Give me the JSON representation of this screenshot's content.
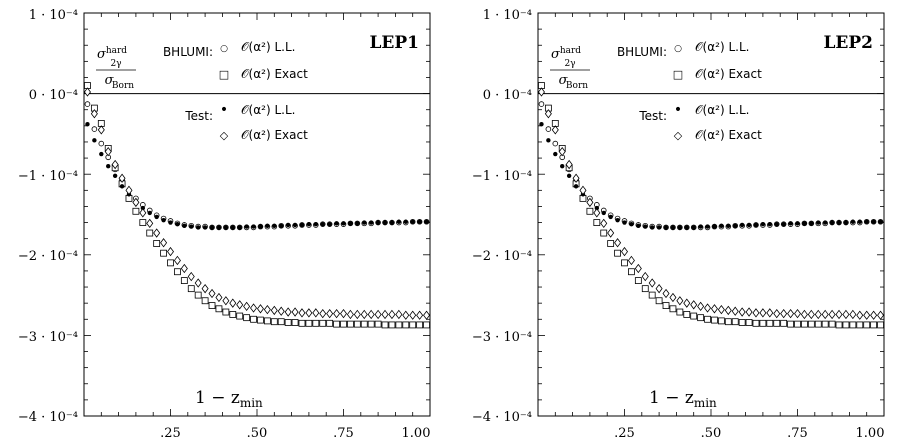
{
  "chart_data": [
    {
      "type": "scatter",
      "title": "LEP1",
      "ylabel_num": "σ",
      "ylabel_num_sup": "hard",
      "ylabel_num_sub": "2γ",
      "ylabel_den": "σ",
      "ylabel_den_sub": "Born",
      "xlabel_main": "1 − z",
      "xlabel_sub": "min",
      "xlim": [
        0,
        1.0
      ],
      "ylim": [
        -0.0004,
        0.0001
      ],
      "x_ticks": [
        0.25,
        0.5,
        0.75,
        1.0
      ],
      "x_tick_labels": [
        ".25",
        ".50",
        ".75",
        "1.00"
      ],
      "y_ticks": [
        0.0001,
        0,
        -0.0001,
        -0.0002,
        -0.0003,
        -0.0004
      ],
      "y_tick_labels": [
        "1 · 10⁻⁴",
        "0 · 10⁻⁴",
        "−1 · 10⁻⁴",
        "−2 · 10⁻⁴",
        "−3 · 10⁻⁴",
        "−4 · 10⁻⁴"
      ],
      "grid": false,
      "reference_line_y": 0,
      "legend": {
        "position": "top-right",
        "groups": [
          {
            "label": "BHLUMI:",
            "entries": [
              {
                "symbol": "○",
                "text": "𝒪(α²) L.L."
              },
              {
                "symbol": "□",
                "text": "𝒪(α²) Exact"
              }
            ]
          },
          {
            "label": "Test:",
            "entries": [
              {
                "symbol": "•",
                "text": "𝒪(α²) L.L."
              },
              {
                "symbol": "◇",
                "text": "𝒪(α²) Exact"
              }
            ]
          }
        ]
      },
      "x": [
        0.01,
        0.03,
        0.05,
        0.07,
        0.09,
        0.11,
        0.13,
        0.15,
        0.17,
        0.19,
        0.21,
        0.23,
        0.25,
        0.27,
        0.29,
        0.31,
        0.33,
        0.35,
        0.37,
        0.39,
        0.41,
        0.43,
        0.45,
        0.47,
        0.49,
        0.51,
        0.53,
        0.55,
        0.57,
        0.59,
        0.61,
        0.63,
        0.65,
        0.67,
        0.69,
        0.71,
        0.73,
        0.75,
        0.77,
        0.79,
        0.81,
        0.83,
        0.85,
        0.87,
        0.89,
        0.91,
        0.93,
        0.95,
        0.97,
        0.99
      ],
      "series": [
        {
          "name": "BHLUMI: 𝒪(α²) L.L.",
          "marker": "circle",
          "values": [
            -1.3e-05,
            -4.4e-05,
            -6.2e-05,
            -7.9e-05,
            -9.4e-05,
            -0.000107,
            -0.00012,
            -0.00013,
            -0.000138,
            -0.000145,
            -0.000151,
            -0.000155,
            -0.000158,
            -0.000161,
            -0.000163,
            -0.000164,
            -0.000165,
            -0.000165,
            -0.000166,
            -0.000166,
            -0.000166,
            -0.000166,
            -0.000166,
            -0.000166,
            -0.000166,
            -0.000165,
            -0.000165,
            -0.000165,
            -0.000164,
            -0.000164,
            -0.000164,
            -0.000163,
            -0.000163,
            -0.000163,
            -0.000162,
            -0.000162,
            -0.000162,
            -0.000162,
            -0.000161,
            -0.000161,
            -0.000161,
            -0.000161,
            -0.00016,
            -0.00016,
            -0.00016,
            -0.00016,
            -0.00016,
            -0.000159,
            -0.000159,
            -0.000159
          ]
        },
        {
          "name": "BHLUMI: 𝒪(α²) Exact",
          "marker": "square",
          "values": [
            1e-05,
            -1.8e-05,
            -3.7e-05,
            -6.8e-05,
            -9.2e-05,
            -0.000112,
            -0.00013,
            -0.000146,
            -0.00016,
            -0.000173,
            -0.000186,
            -0.000198,
            -0.00021,
            -0.000221,
            -0.000232,
            -0.000242,
            -0.00025,
            -0.000257,
            -0.000263,
            -0.000267,
            -0.000271,
            -0.000274,
            -0.000276,
            -0.000278,
            -0.00028,
            -0.000281,
            -0.000282,
            -0.000283,
            -0.000283,
            -0.000284,
            -0.000284,
            -0.000285,
            -0.000285,
            -0.000285,
            -0.000285,
            -0.000285,
            -0.000286,
            -0.000286,
            -0.000286,
            -0.000286,
            -0.000286,
            -0.000286,
            -0.000286,
            -0.000287,
            -0.000287,
            -0.000287,
            -0.000287,
            -0.000287,
            -0.000287,
            -0.000287
          ]
        },
        {
          "name": "Test: 𝒪(α²) L.L.",
          "marker": "dot",
          "values": [
            -3.8e-05,
            -5.8e-05,
            -7.5e-05,
            -9e-05,
            -0.000102,
            -0.000115,
            -0.000125,
            -0.000134,
            -0.000142,
            -0.000148,
            -0.000153,
            -0.000157,
            -0.00016,
            -0.000162,
            -0.000164,
            -0.000165,
            -0.000166,
            -0.000166,
            -0.000166,
            -0.000166,
            -0.000166,
            -0.000166,
            -0.000166,
            -0.000165,
            -0.000165,
            -0.000165,
            -0.000164,
            -0.000164,
            -0.000164,
            -0.000163,
            -0.000163,
            -0.000163,
            -0.000162,
            -0.000162,
            -0.000162,
            -0.000162,
            -0.000161,
            -0.000161,
            -0.000161,
            -0.000161,
            -0.00016,
            -0.00016,
            -0.00016,
            -0.00016,
            -0.00016,
            -0.000159,
            -0.000159,
            -0.000159,
            -0.000159,
            -0.000159
          ]
        },
        {
          "name": "Test: 𝒪(α²) Exact",
          "marker": "diamond",
          "values": [
            2e-06,
            -2.5e-05,
            -4.5e-05,
            -7.2e-05,
            -8.8e-05,
            -0.000105,
            -0.00012,
            -0.000135,
            -0.000148,
            -0.000161,
            -0.000173,
            -0.000185,
            -0.000196,
            -0.000207,
            -0.000217,
            -0.000227,
            -0.000235,
            -0.000242,
            -0.000248,
            -0.000253,
            -0.000257,
            -0.00026,
            -0.000262,
            -0.000264,
            -0.000266,
            -0.000267,
            -0.000268,
            -0.000269,
            -0.00027,
            -0.000271,
            -0.000271,
            -0.000272,
            -0.000272,
            -0.000272,
            -0.000273,
            -0.000273,
            -0.000273,
            -0.000273,
            -0.000274,
            -0.000274,
            -0.000274,
            -0.000274,
            -0.000274,
            -0.000274,
            -0.000274,
            -0.000274,
            -0.000275,
            -0.000275,
            -0.000275,
            -0.000275
          ]
        }
      ]
    },
    {
      "type": "scatter",
      "title": "LEP2",
      "ylabel_num": "σ",
      "ylabel_num_sup": "hard",
      "ylabel_num_sub": "2γ",
      "ylabel_den": "σ",
      "ylabel_den_sub": "Born",
      "xlabel_main": "1 − z",
      "xlabel_sub": "min",
      "xlim": [
        0,
        1.0
      ],
      "ylim": [
        -0.0004,
        0.0001
      ],
      "x_ticks": [
        0.25,
        0.5,
        0.75,
        1.0
      ],
      "x_tick_labels": [
        ".25",
        ".50",
        ".75",
        "1.00"
      ],
      "y_ticks": [
        0.0001,
        0,
        -0.0001,
        -0.0002,
        -0.0003,
        -0.0004
      ],
      "y_tick_labels": [
        "1 · 10⁻⁴",
        "0 · 10⁻⁴",
        "−1 · 10⁻⁴",
        "−2 · 10⁻⁴",
        "−3 · 10⁻⁴",
        "−4 · 10⁻⁴"
      ],
      "grid": false,
      "reference_line_y": 0,
      "legend": {
        "position": "top-right",
        "groups": [
          {
            "label": "BHLUMI:",
            "entries": [
              {
                "symbol": "○",
                "text": "𝒪(α²) L.L."
              },
              {
                "symbol": "□",
                "text": "𝒪(α²) Exact"
              }
            ]
          },
          {
            "label": "Test:",
            "entries": [
              {
                "symbol": "•",
                "text": "𝒪(α²) L.L."
              },
              {
                "symbol": "◇",
                "text": "𝒪(α²) Exact"
              }
            ]
          }
        ]
      },
      "x": [
        0.01,
        0.03,
        0.05,
        0.07,
        0.09,
        0.11,
        0.13,
        0.15,
        0.17,
        0.19,
        0.21,
        0.23,
        0.25,
        0.27,
        0.29,
        0.31,
        0.33,
        0.35,
        0.37,
        0.39,
        0.41,
        0.43,
        0.45,
        0.47,
        0.49,
        0.51,
        0.53,
        0.55,
        0.57,
        0.59,
        0.61,
        0.63,
        0.65,
        0.67,
        0.69,
        0.71,
        0.73,
        0.75,
        0.77,
        0.79,
        0.81,
        0.83,
        0.85,
        0.87,
        0.89,
        0.91,
        0.93,
        0.95,
        0.97,
        0.99
      ],
      "series": [
        {
          "name": "BHLUMI: 𝒪(α²) L.L.",
          "marker": "circle",
          "values": [
            -1.3e-05,
            -4.4e-05,
            -6.2e-05,
            -7.9e-05,
            -9.4e-05,
            -0.000107,
            -0.00012,
            -0.00013,
            -0.000138,
            -0.000145,
            -0.000151,
            -0.000155,
            -0.000158,
            -0.000161,
            -0.000163,
            -0.000164,
            -0.000165,
            -0.000165,
            -0.000166,
            -0.000166,
            -0.000166,
            -0.000166,
            -0.000166,
            -0.000166,
            -0.000166,
            -0.000165,
            -0.000165,
            -0.000165,
            -0.000164,
            -0.000164,
            -0.000164,
            -0.000163,
            -0.000163,
            -0.000163,
            -0.000162,
            -0.000162,
            -0.000162,
            -0.000162,
            -0.000161,
            -0.000161,
            -0.000161,
            -0.000161,
            -0.00016,
            -0.00016,
            -0.00016,
            -0.00016,
            -0.00016,
            -0.000159,
            -0.000159,
            -0.000159
          ]
        },
        {
          "name": "BHLUMI: 𝒪(α²) Exact",
          "marker": "square",
          "values": [
            1e-05,
            -1.8e-05,
            -3.7e-05,
            -6.8e-05,
            -9.2e-05,
            -0.000112,
            -0.00013,
            -0.000146,
            -0.00016,
            -0.000173,
            -0.000186,
            -0.000198,
            -0.00021,
            -0.000221,
            -0.000232,
            -0.000242,
            -0.00025,
            -0.000257,
            -0.000263,
            -0.000267,
            -0.000271,
            -0.000274,
            -0.000276,
            -0.000278,
            -0.00028,
            -0.000281,
            -0.000282,
            -0.000283,
            -0.000283,
            -0.000284,
            -0.000284,
            -0.000285,
            -0.000285,
            -0.000285,
            -0.000285,
            -0.000285,
            -0.000286,
            -0.000286,
            -0.000286,
            -0.000286,
            -0.000286,
            -0.000286,
            -0.000286,
            -0.000287,
            -0.000287,
            -0.000287,
            -0.000287,
            -0.000287,
            -0.000287,
            -0.000287
          ]
        },
        {
          "name": "Test: 𝒪(α²) L.L.",
          "marker": "dot",
          "values": [
            -3.8e-05,
            -5.8e-05,
            -7.5e-05,
            -9e-05,
            -0.000102,
            -0.000115,
            -0.000125,
            -0.000134,
            -0.000142,
            -0.000148,
            -0.000153,
            -0.000157,
            -0.00016,
            -0.000162,
            -0.000164,
            -0.000165,
            -0.000166,
            -0.000166,
            -0.000166,
            -0.000166,
            -0.000166,
            -0.000166,
            -0.000166,
            -0.000165,
            -0.000165,
            -0.000165,
            -0.000164,
            -0.000164,
            -0.000164,
            -0.000163,
            -0.000163,
            -0.000163,
            -0.000162,
            -0.000162,
            -0.000162,
            -0.000162,
            -0.000161,
            -0.000161,
            -0.000161,
            -0.000161,
            -0.00016,
            -0.00016,
            -0.00016,
            -0.00016,
            -0.00016,
            -0.000159,
            -0.000159,
            -0.000159,
            -0.000159,
            -0.000159
          ]
        },
        {
          "name": "Test: 𝒪(α²) Exact",
          "marker": "diamond",
          "values": [
            2e-06,
            -2.5e-05,
            -4.5e-05,
            -7.2e-05,
            -8.8e-05,
            -0.000105,
            -0.00012,
            -0.000135,
            -0.000148,
            -0.000161,
            -0.000173,
            -0.000185,
            -0.000196,
            -0.000207,
            -0.000217,
            -0.000227,
            -0.000235,
            -0.000242,
            -0.000248,
            -0.000253,
            -0.000257,
            -0.00026,
            -0.000262,
            -0.000264,
            -0.000266,
            -0.000267,
            -0.000268,
            -0.000269,
            -0.00027,
            -0.000271,
            -0.000271,
            -0.000272,
            -0.000272,
            -0.000272,
            -0.000273,
            -0.000273,
            -0.000273,
            -0.000273,
            -0.000274,
            -0.000274,
            -0.000274,
            -0.000274,
            -0.000274,
            -0.000274,
            -0.000274,
            -0.000274,
            -0.000275,
            -0.000275,
            -0.000275,
            -0.000275
          ]
        }
      ]
    }
  ]
}
